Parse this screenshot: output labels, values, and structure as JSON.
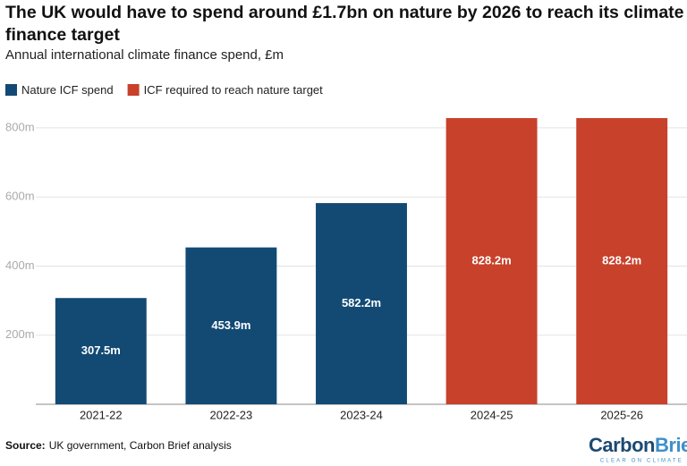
{
  "chart_data": {
    "type": "bar",
    "title": "The UK would have to spend around £1.7bn on nature by 2026 to reach its climate finance target",
    "subtitle": "Annual international climate finance spend, £m",
    "categories": [
      "2021-22",
      "2022-23",
      "2023-24",
      "2024-25",
      "2025-26"
    ],
    "series": [
      {
        "name": "Nature ICF spend",
        "color": "#124a74",
        "values": [
          307.5,
          453.9,
          582.2,
          null,
          null
        ],
        "value_labels": [
          "307.5m",
          "453.9m",
          "582.2m",
          null,
          null
        ]
      },
      {
        "name": "ICF required to reach nature target",
        "color": "#c8412b",
        "values": [
          null,
          null,
          null,
          828.2,
          828.2
        ],
        "value_labels": [
          null,
          null,
          null,
          "828.2m",
          "828.2m"
        ]
      }
    ],
    "ylim": [
      0,
      850
    ],
    "yticks": [
      {
        "value": 200,
        "label": "200m"
      },
      {
        "value": 400,
        "label": "400m"
      },
      {
        "value": 600,
        "label": "600m"
      },
      {
        "value": 800,
        "label": "800m"
      }
    ],
    "grid": true,
    "legend": "top-left",
    "source_label": "Source:",
    "source": "UK government, Carbon Brief analysis",
    "logo": [
      "Carbon",
      "Brief"
    ],
    "logo_tagline": "CLEAR ON CLIMATE"
  }
}
